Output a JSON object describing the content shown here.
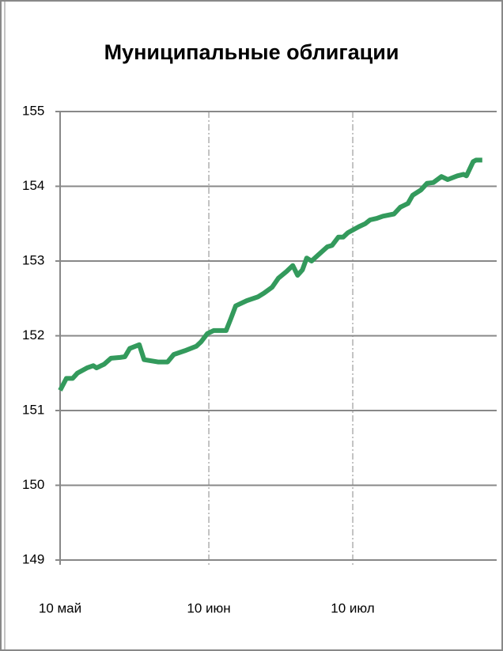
{
  "chart_data": {
    "type": "line",
    "title": "Муниципальные облигации",
    "x": [
      0,
      1.3,
      2.6,
      3.6,
      5.6,
      6.9,
      7.6,
      9.2,
      10.6,
      12.5,
      13.5,
      14.5,
      16.5,
      17.5,
      20.4,
      22.4,
      23.7,
      26,
      28.4,
      29.4,
      30.7,
      32,
      34.6,
      35.6,
      36.6,
      38.9,
      41.2,
      42.5,
      44.2,
      45.5,
      47.2,
      48.5,
      49.5,
      50.5,
      51.4,
      52.4,
      53.8,
      55.7,
      56.7,
      58,
      59,
      60,
      62.3,
      63.6,
      64.6,
      66,
      67.3,
      69.6,
      70.9,
      72.5,
      73.5,
      75.2,
      76.5,
      77.8,
      79.5,
      80.8,
      82.8,
      84.1,
      84.7,
      86.1,
      86.7,
      88
    ],
    "series": [
      {
        "name": "Муниципальные облигации",
        "color": "#339a5c",
        "values": [
          151.27,
          151.43,
          151.43,
          151.5,
          151.57,
          151.6,
          151.57,
          151.62,
          151.7,
          151.71,
          151.72,
          151.83,
          151.88,
          151.68,
          151.65,
          151.65,
          151.75,
          151.8,
          151.86,
          151.92,
          152.03,
          152.07,
          152.07,
          152.23,
          152.4,
          152.47,
          152.52,
          152.57,
          152.65,
          152.77,
          152.86,
          152.94,
          152.81,
          152.88,
          153.04,
          153.0,
          153.08,
          153.19,
          153.21,
          153.32,
          153.32,
          153.38,
          153.46,
          153.5,
          153.55,
          153.57,
          153.6,
          153.63,
          153.72,
          153.77,
          153.88,
          153.95,
          154.04,
          154.05,
          154.13,
          154.09,
          154.14,
          154.16,
          154.14,
          154.33,
          154.35,
          154.35
        ]
      }
    ],
    "xlim": [
      0,
      91
    ],
    "xticks": [
      {
        "value": 0,
        "label": "10 май"
      },
      {
        "value": 31,
        "label": "10 июн"
      },
      {
        "value": 61,
        "label": "10 июл"
      }
    ],
    "ylim": [
      149,
      155
    ],
    "yticks": [
      149,
      150,
      151,
      152,
      153,
      154,
      155
    ],
    "grid": true
  }
}
